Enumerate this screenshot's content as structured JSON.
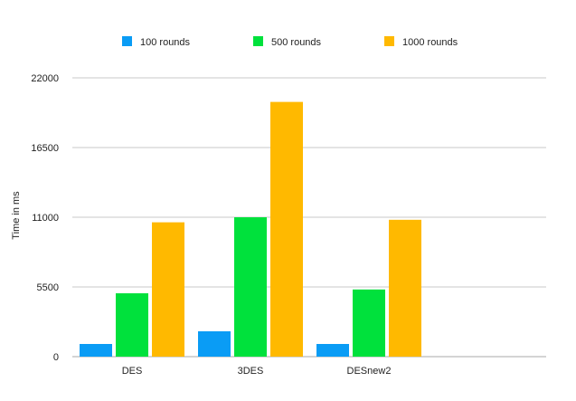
{
  "chart_data": {
    "type": "bar",
    "title": "",
    "xlabel": "",
    "ylabel": "Time in ms",
    "categories": [
      "DES",
      "3DES",
      "DESnew2",
      ""
    ],
    "series": [
      {
        "name": "100 rounds",
        "color": "#0a9cf5",
        "values": [
          1000,
          2000,
          1000,
          null
        ]
      },
      {
        "name": "500 rounds",
        "color": "#00e13c",
        "values": [
          5000,
          11000,
          5300,
          null
        ]
      },
      {
        "name": "1000 rounds",
        "color": "#ffb900",
        "values": [
          10600,
          20100,
          10800,
          null
        ]
      }
    ],
    "ylim": [
      0,
      22000
    ],
    "yticks": [
      0,
      5500,
      11000,
      16500,
      22000
    ],
    "grid": true,
    "legend_position": "top"
  }
}
